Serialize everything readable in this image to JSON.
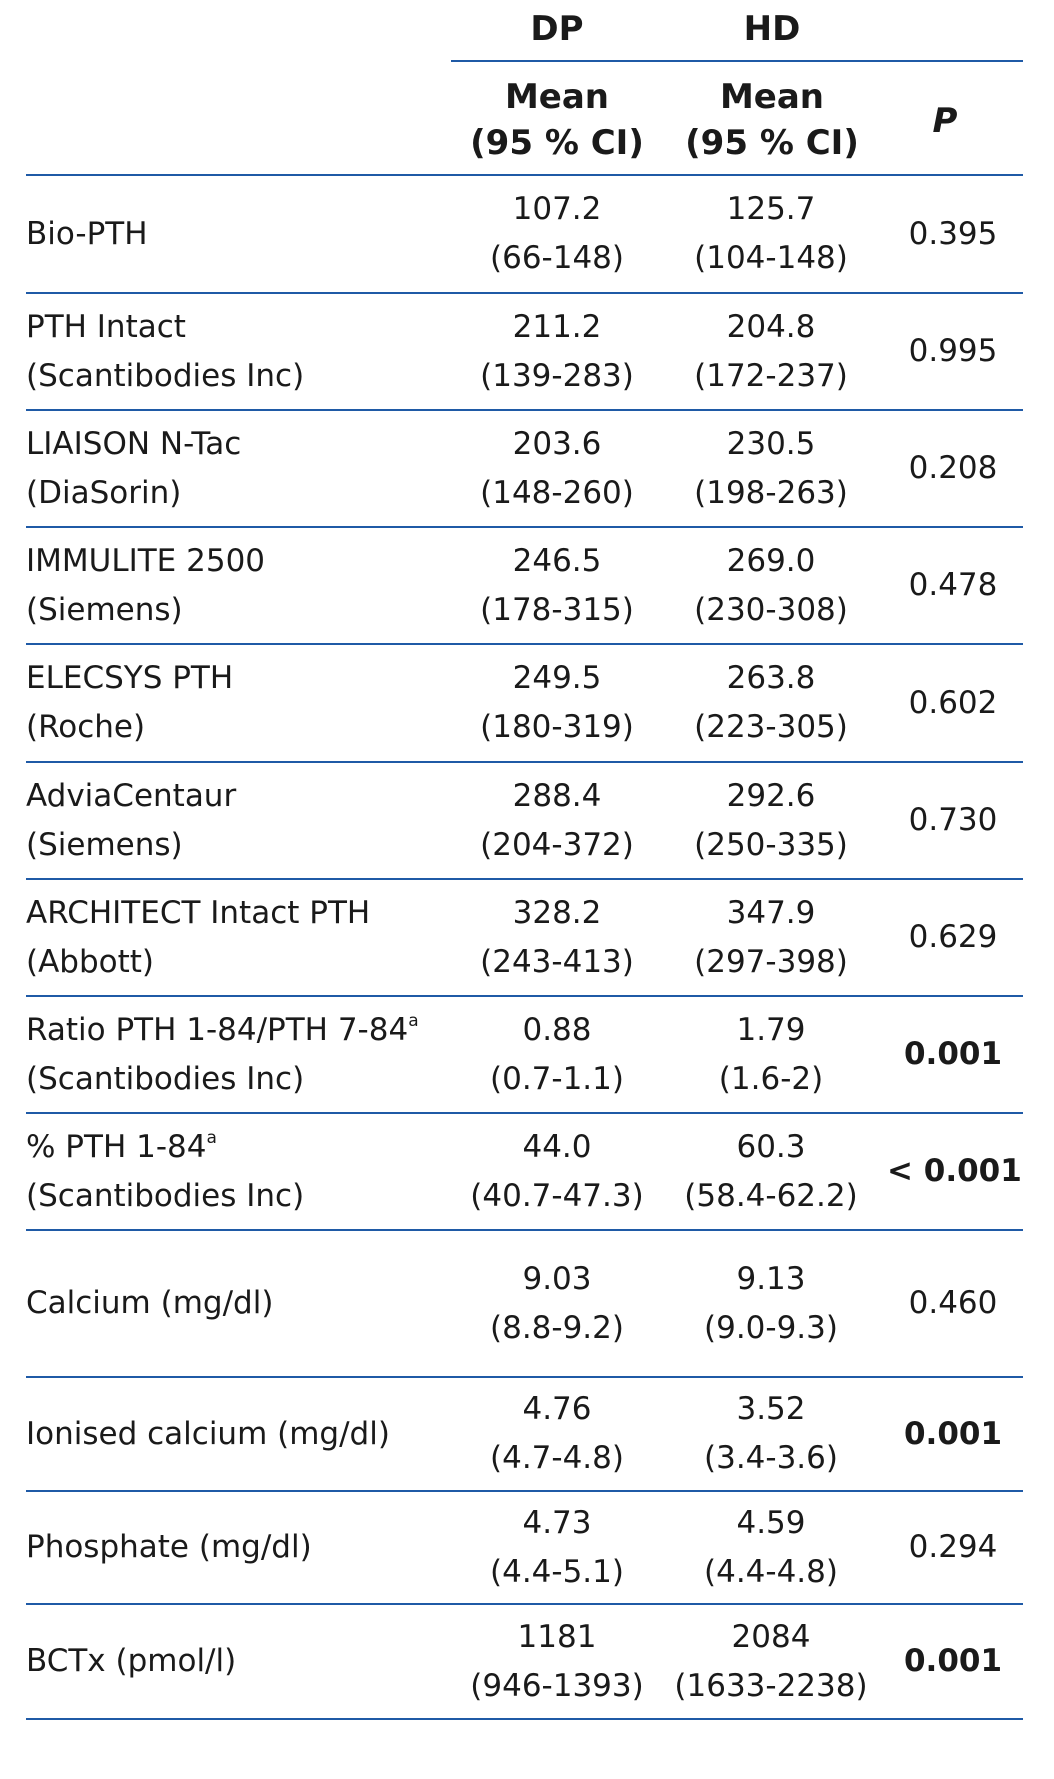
{
  "header": {
    "dp_label": "DP",
    "hd_label": "HD",
    "mean_line1": "Mean",
    "mean_line2": "(95 % CI)",
    "p_label": "P"
  },
  "rows": [
    {
      "label1": "Bio-PTH",
      "label2": "",
      "sup": "",
      "dp_mean": "107.2",
      "dp_ci": "(66-148)",
      "hd_mean": "125.7",
      "hd_ci": "(104-148)",
      "p": "0.395",
      "p_bold": false
    },
    {
      "label1": "PTH Intact",
      "label2": "(Scantibodies Inc)",
      "sup": "",
      "dp_mean": "211.2",
      "dp_ci": "(139-283)",
      "hd_mean": "204.8",
      "hd_ci": "(172-237)",
      "p": "0.995",
      "p_bold": false
    },
    {
      "label1": "LIAISON N-Tac",
      "label2": "(DiaSorin)",
      "sup": "",
      "dp_mean": "203.6",
      "dp_ci": "(148-260)",
      "hd_mean": "230.5",
      "hd_ci": "(198-263)",
      "p": "0.208",
      "p_bold": false
    },
    {
      "label1": "IMMULITE 2500",
      "label2": "(Siemens)",
      "sup": "",
      "dp_mean": "246.5",
      "dp_ci": "(178-315)",
      "hd_mean": "269.0",
      "hd_ci": "(230-308)",
      "p": "0.478",
      "p_bold": false
    },
    {
      "label1": "ELECSYS PTH",
      "label2": "(Roche)",
      "sup": "",
      "dp_mean": "249.5",
      "dp_ci": "(180-319)",
      "hd_mean": "263.8",
      "hd_ci": "(223-305)",
      "p": "0.602",
      "p_bold": false
    },
    {
      "label1": "AdviaCentaur",
      "label2": "(Siemens)",
      "sup": "",
      "dp_mean": "288.4",
      "dp_ci": "(204-372)",
      "hd_mean": "292.6",
      "hd_ci": "(250-335)",
      "p": "0.730",
      "p_bold": false
    },
    {
      "label1": "ARCHITECT Intact PTH",
      "label2": "(Abbott)",
      "sup": "",
      "dp_mean": "328.2",
      "dp_ci": "(243-413)",
      "hd_mean": "347.9",
      "hd_ci": "(297-398)",
      "p": "0.629",
      "p_bold": false
    },
    {
      "label1": "Ratio PTH 1-84/PTH 7-84",
      "label2": "(Scantibodies Inc)",
      "sup": "a",
      "dp_mean": "0.88",
      "dp_ci": "(0.7-1.1)",
      "hd_mean": "1.79",
      "hd_ci": "(1.6-2)",
      "p": "0.001",
      "p_bold": true
    },
    {
      "label1": "% PTH 1-84",
      "label2": "(Scantibodies Inc)",
      "sup": "a",
      "dp_mean": "44.0",
      "dp_ci": "(40.7-47.3)",
      "hd_mean": "60.3",
      "hd_ci": "(58.4-62.2)",
      "p": "< 0.001",
      "p_bold": true
    },
    {
      "label1": "Calcium (mg/dl)",
      "label2": "",
      "sup": "",
      "dp_mean": "9.03",
      "dp_ci": "(8.8-9.2)",
      "hd_mean": "9.13",
      "hd_ci": "(9.0-9.3)",
      "p": "0.460",
      "p_bold": false
    },
    {
      "label1": "Ionised calcium (mg/dl)",
      "label2": "",
      "sup": "",
      "dp_mean": "4.76",
      "dp_ci": "(4.7-4.8)",
      "hd_mean": "3.52",
      "hd_ci": "(3.4-3.6)",
      "p": "0.001",
      "p_bold": true
    },
    {
      "label1": "Phosphate (mg/dl)",
      "label2": "",
      "sup": "",
      "dp_mean": "4.73",
      "dp_ci": "(4.4-5.1)",
      "hd_mean": "4.59",
      "hd_ci": "(4.4-4.8)",
      "p": "0.294",
      "p_bold": false
    },
    {
      "label1": "BCTx (pmol/l)",
      "label2": "",
      "sup": "",
      "dp_mean": "1181",
      "dp_ci": "(946-1393)",
      "hd_mean": "2084",
      "hd_ci": "(1633-2238)",
      "p": "0.001",
      "p_bold": true
    }
  ],
  "colors": {
    "rule": "#1f5aa6",
    "text": "#1a1a1a"
  }
}
